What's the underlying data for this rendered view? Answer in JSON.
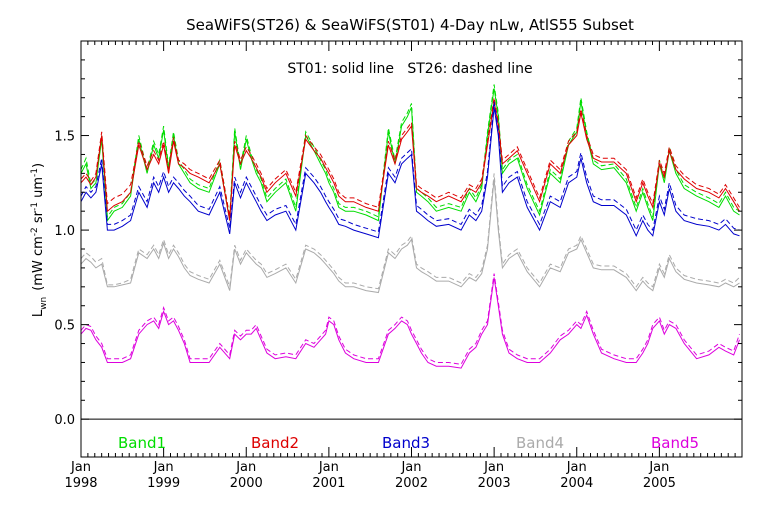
{
  "chart_data": {
    "type": "line",
    "title": "SeaWiFS(ST26) & SeaWiFS(ST01) 4-Day nLw, AtlS55 Subset",
    "annotation": "ST01: solid line   ST26: dashed line",
    "ylabel_main": "L",
    "ylabel_sub": "wn",
    "ylabel_units": "(mW cm",
    "ylabel_units_parts": [
      "(mW cm",
      "-2",
      " sr",
      "-1",
      " um",
      "-1",
      ")"
    ],
    "xlim": [
      1998.0,
      2006.0
    ],
    "ylim": [
      -0.2,
      2.0
    ],
    "yticks": [
      0.0,
      0.5,
      1.0,
      1.5
    ],
    "ytick_labels": [
      "0.0",
      "0.5",
      "1.0",
      "1.5"
    ],
    "xticks": [
      {
        "x": 1998.0,
        "month": "Jan",
        "year": "1998"
      },
      {
        "x": 1999.0,
        "month": "Jan",
        "year": "1999"
      },
      {
        "x": 2000.0,
        "month": "Jan",
        "year": "2000"
      },
      {
        "x": 2001.0,
        "month": "Jan",
        "year": "2001"
      },
      {
        "x": 2002.0,
        "month": "Jan",
        "year": "2002"
      },
      {
        "x": 2003.0,
        "month": "Jan",
        "year": "2003"
      },
      {
        "x": 2004.0,
        "month": "Jan",
        "year": "2004"
      },
      {
        "x": 2005.0,
        "month": "Jan",
        "year": "2005"
      }
    ],
    "zero_line": 0.0,
    "x": [
      1998.0,
      1998.06,
      1998.12,
      1998.18,
      1998.25,
      1998.32,
      1998.4,
      1998.5,
      1998.6,
      1998.7,
      1998.8,
      1998.88,
      1998.94,
      1999.0,
      1999.06,
      1999.12,
      1999.18,
      1999.25,
      1999.32,
      1999.42,
      1999.55,
      1999.68,
      1999.8,
      1999.86,
      1999.93,
      2000.0,
      2000.06,
      2000.12,
      2000.18,
      2000.25,
      2000.35,
      2000.48,
      2000.6,
      2000.72,
      2000.82,
      2000.9,
      2000.96,
      2001.0,
      2001.06,
      2001.12,
      2001.2,
      2001.3,
      2001.45,
      2001.6,
      2001.72,
      2001.8,
      2001.88,
      2001.95,
      2002.0,
      2002.06,
      2002.12,
      2002.2,
      2002.3,
      2002.45,
      2002.6,
      2002.7,
      2002.78,
      2002.85,
      2002.92,
      2003.0,
      2003.05,
      2003.1,
      2003.18,
      2003.28,
      2003.4,
      2003.55,
      2003.68,
      2003.8,
      2003.9,
      2004.0,
      2004.05,
      2004.12,
      2004.2,
      2004.3,
      2004.45,
      2004.6,
      2004.72,
      2004.8,
      2004.86,
      2004.92,
      2005.0,
      2005.06,
      2005.12,
      2005.2,
      2005.3,
      2005.45,
      2005.6,
      2005.72,
      2005.8,
      2005.9,
      2005.97
    ],
    "series": [
      {
        "name": "Band1",
        "color": "#00dd00",
        "st01": [
          1.3,
          1.35,
          1.22,
          1.25,
          1.48,
          1.05,
          1.1,
          1.12,
          1.18,
          1.48,
          1.3,
          1.45,
          1.38,
          1.53,
          1.32,
          1.5,
          1.35,
          1.3,
          1.25,
          1.22,
          1.2,
          1.35,
          1.05,
          1.52,
          1.32,
          1.48,
          1.38,
          1.3,
          1.25,
          1.15,
          1.2,
          1.25,
          1.1,
          1.5,
          1.42,
          1.35,
          1.3,
          1.25,
          1.2,
          1.12,
          1.1,
          1.1,
          1.08,
          1.05,
          1.52,
          1.35,
          1.55,
          1.6,
          1.65,
          1.2,
          1.18,
          1.15,
          1.1,
          1.12,
          1.1,
          1.2,
          1.15,
          1.22,
          1.5,
          1.75,
          1.6,
          1.3,
          1.35,
          1.38,
          1.22,
          1.08,
          1.3,
          1.25,
          1.45,
          1.52,
          1.68,
          1.5,
          1.35,
          1.32,
          1.33,
          1.25,
          1.1,
          1.2,
          1.12,
          1.05,
          1.35,
          1.25,
          1.42,
          1.3,
          1.22,
          1.18,
          1.15,
          1.12,
          1.18,
          1.1,
          1.08
        ],
        "st26": [
          1.32,
          1.38,
          1.24,
          1.27,
          1.5,
          1.07,
          1.12,
          1.14,
          1.2,
          1.5,
          1.32,
          1.47,
          1.4,
          1.55,
          1.34,
          1.52,
          1.37,
          1.32,
          1.27,
          1.24,
          1.22,
          1.37,
          1.07,
          1.54,
          1.34,
          1.5,
          1.4,
          1.32,
          1.27,
          1.17,
          1.22,
          1.27,
          1.12,
          1.52,
          1.44,
          1.37,
          1.32,
          1.27,
          1.22,
          1.14,
          1.12,
          1.12,
          1.1,
          1.07,
          1.54,
          1.37,
          1.57,
          1.62,
          1.67,
          1.22,
          1.2,
          1.17,
          1.12,
          1.14,
          1.12,
          1.22,
          1.17,
          1.24,
          1.52,
          1.77,
          1.62,
          1.32,
          1.37,
          1.4,
          1.24,
          1.1,
          1.32,
          1.27,
          1.47,
          1.54,
          1.7,
          1.52,
          1.37,
          1.34,
          1.35,
          1.27,
          1.12,
          1.22,
          1.14,
          1.07,
          1.37,
          1.27,
          1.44,
          1.32,
          1.24,
          1.2,
          1.17,
          1.14,
          1.2,
          1.12,
          1.1
        ]
      },
      {
        "name": "Band2",
        "color": "#dd0000",
        "st01": [
          1.25,
          1.28,
          1.24,
          1.28,
          1.5,
          1.1,
          1.13,
          1.15,
          1.2,
          1.45,
          1.32,
          1.4,
          1.35,
          1.45,
          1.3,
          1.47,
          1.35,
          1.33,
          1.3,
          1.28,
          1.25,
          1.35,
          1.05,
          1.45,
          1.35,
          1.42,
          1.38,
          1.33,
          1.28,
          1.2,
          1.25,
          1.3,
          1.18,
          1.48,
          1.42,
          1.38,
          1.33,
          1.3,
          1.25,
          1.18,
          1.15,
          1.15,
          1.12,
          1.1,
          1.45,
          1.35,
          1.48,
          1.52,
          1.55,
          1.22,
          1.2,
          1.18,
          1.15,
          1.18,
          1.15,
          1.22,
          1.2,
          1.25,
          1.45,
          1.68,
          1.55,
          1.35,
          1.38,
          1.42,
          1.3,
          1.15,
          1.35,
          1.3,
          1.45,
          1.5,
          1.62,
          1.48,
          1.38,
          1.36,
          1.36,
          1.3,
          1.15,
          1.25,
          1.18,
          1.12,
          1.35,
          1.28,
          1.42,
          1.32,
          1.27,
          1.22,
          1.2,
          1.17,
          1.22,
          1.15,
          1.1
        ],
        "st26": [
          1.27,
          1.3,
          1.26,
          1.3,
          1.52,
          1.14,
          1.17,
          1.19,
          1.24,
          1.47,
          1.34,
          1.42,
          1.37,
          1.47,
          1.32,
          1.49,
          1.37,
          1.35,
          1.32,
          1.3,
          1.27,
          1.37,
          1.07,
          1.47,
          1.37,
          1.44,
          1.4,
          1.35,
          1.3,
          1.22,
          1.27,
          1.32,
          1.2,
          1.5,
          1.44,
          1.4,
          1.35,
          1.32,
          1.27,
          1.2,
          1.17,
          1.17,
          1.14,
          1.12,
          1.47,
          1.37,
          1.5,
          1.54,
          1.57,
          1.24,
          1.22,
          1.2,
          1.17,
          1.2,
          1.17,
          1.24,
          1.22,
          1.27,
          1.47,
          1.7,
          1.57,
          1.37,
          1.4,
          1.44,
          1.32,
          1.17,
          1.37,
          1.32,
          1.47,
          1.52,
          1.64,
          1.5,
          1.4,
          1.38,
          1.38,
          1.32,
          1.17,
          1.27,
          1.2,
          1.14,
          1.37,
          1.3,
          1.44,
          1.34,
          1.29,
          1.24,
          1.22,
          1.19,
          1.24,
          1.17,
          1.12
        ]
      },
      {
        "name": "Band3",
        "color": "#0000cc",
        "st01": [
          1.15,
          1.2,
          1.17,
          1.2,
          1.35,
          1.0,
          1.0,
          1.02,
          1.05,
          1.2,
          1.12,
          1.25,
          1.2,
          1.28,
          1.2,
          1.25,
          1.22,
          1.18,
          1.15,
          1.1,
          1.08,
          1.2,
          0.98,
          1.25,
          1.17,
          1.25,
          1.2,
          1.15,
          1.1,
          1.05,
          1.08,
          1.1,
          1.0,
          1.3,
          1.25,
          1.2,
          1.15,
          1.12,
          1.08,
          1.03,
          1.02,
          1.0,
          0.98,
          0.96,
          1.3,
          1.25,
          1.35,
          1.38,
          1.4,
          1.1,
          1.08,
          1.05,
          1.02,
          1.03,
          1.0,
          1.08,
          1.05,
          1.1,
          1.28,
          1.65,
          1.5,
          1.2,
          1.25,
          1.28,
          1.12,
          1.0,
          1.15,
          1.12,
          1.25,
          1.28,
          1.38,
          1.25,
          1.15,
          1.13,
          1.13,
          1.08,
          0.97,
          1.05,
          1.0,
          0.97,
          1.15,
          1.08,
          1.22,
          1.1,
          1.05,
          1.03,
          1.02,
          1.0,
          1.03,
          0.98,
          0.97
        ],
        "st26": [
          1.18,
          1.23,
          1.2,
          1.23,
          1.38,
          1.03,
          1.03,
          1.05,
          1.08,
          1.23,
          1.15,
          1.28,
          1.23,
          1.31,
          1.23,
          1.28,
          1.25,
          1.21,
          1.18,
          1.13,
          1.11,
          1.23,
          1.01,
          1.28,
          1.2,
          1.28,
          1.23,
          1.18,
          1.13,
          1.08,
          1.11,
          1.13,
          1.03,
          1.33,
          1.28,
          1.23,
          1.18,
          1.15,
          1.11,
          1.06,
          1.05,
          1.03,
          1.01,
          0.99,
          1.33,
          1.28,
          1.38,
          1.41,
          1.43,
          1.13,
          1.11,
          1.08,
          1.05,
          1.06,
          1.03,
          1.11,
          1.08,
          1.13,
          1.31,
          1.68,
          1.53,
          1.23,
          1.28,
          1.31,
          1.15,
          1.03,
          1.18,
          1.15,
          1.28,
          1.31,
          1.41,
          1.28,
          1.18,
          1.16,
          1.16,
          1.11,
          1.0,
          1.08,
          1.03,
          1.0,
          1.18,
          1.11,
          1.25,
          1.13,
          1.08,
          1.06,
          1.05,
          1.03,
          1.06,
          1.01,
          1.0
        ]
      },
      {
        "name": "Band4",
        "color": "#aaaaaa",
        "st01": [
          0.82,
          0.85,
          0.83,
          0.8,
          0.82,
          0.7,
          0.7,
          0.71,
          0.72,
          0.88,
          0.85,
          0.9,
          0.85,
          0.93,
          0.85,
          0.9,
          0.86,
          0.8,
          0.76,
          0.74,
          0.72,
          0.82,
          0.68,
          0.9,
          0.82,
          0.88,
          0.85,
          0.82,
          0.8,
          0.75,
          0.77,
          0.8,
          0.72,
          0.9,
          0.88,
          0.85,
          0.82,
          0.8,
          0.77,
          0.73,
          0.7,
          0.7,
          0.68,
          0.67,
          0.88,
          0.85,
          0.9,
          0.92,
          0.95,
          0.8,
          0.78,
          0.76,
          0.73,
          0.73,
          0.7,
          0.75,
          0.73,
          0.77,
          0.9,
          1.27,
          1.0,
          0.8,
          0.85,
          0.88,
          0.78,
          0.7,
          0.8,
          0.78,
          0.88,
          0.9,
          0.95,
          0.88,
          0.8,
          0.79,
          0.79,
          0.75,
          0.68,
          0.73,
          0.7,
          0.68,
          0.8,
          0.75,
          0.85,
          0.78,
          0.74,
          0.72,
          0.71,
          0.7,
          0.72,
          0.7,
          0.72
        ],
        "st26": [
          0.85,
          0.88,
          0.86,
          0.83,
          0.85,
          0.71,
          0.71,
          0.72,
          0.74,
          0.9,
          0.87,
          0.92,
          0.87,
          0.95,
          0.87,
          0.92,
          0.88,
          0.82,
          0.78,
          0.76,
          0.74,
          0.84,
          0.7,
          0.92,
          0.84,
          0.9,
          0.87,
          0.84,
          0.82,
          0.77,
          0.79,
          0.82,
          0.74,
          0.92,
          0.9,
          0.87,
          0.84,
          0.82,
          0.79,
          0.75,
          0.72,
          0.72,
          0.7,
          0.69,
          0.9,
          0.87,
          0.92,
          0.94,
          0.97,
          0.82,
          0.8,
          0.78,
          0.75,
          0.75,
          0.72,
          0.77,
          0.75,
          0.79,
          0.92,
          1.3,
          1.03,
          0.82,
          0.87,
          0.9,
          0.8,
          0.72,
          0.82,
          0.8,
          0.9,
          0.92,
          0.97,
          0.9,
          0.82,
          0.81,
          0.81,
          0.77,
          0.7,
          0.75,
          0.72,
          0.7,
          0.82,
          0.77,
          0.87,
          0.8,
          0.76,
          0.74,
          0.73,
          0.72,
          0.74,
          0.72,
          0.75
        ]
      },
      {
        "name": "Band5",
        "color": "#dd00dd",
        "st01": [
          0.45,
          0.48,
          0.47,
          0.42,
          0.38,
          0.3,
          0.3,
          0.3,
          0.32,
          0.45,
          0.5,
          0.52,
          0.48,
          0.57,
          0.5,
          0.52,
          0.47,
          0.4,
          0.3,
          0.3,
          0.3,
          0.38,
          0.32,
          0.45,
          0.42,
          0.45,
          0.45,
          0.48,
          0.42,
          0.35,
          0.32,
          0.33,
          0.32,
          0.4,
          0.38,
          0.42,
          0.45,
          0.52,
          0.5,
          0.42,
          0.35,
          0.32,
          0.3,
          0.3,
          0.45,
          0.48,
          0.52,
          0.5,
          0.45,
          0.4,
          0.35,
          0.3,
          0.28,
          0.28,
          0.27,
          0.35,
          0.38,
          0.45,
          0.5,
          0.75,
          0.6,
          0.45,
          0.35,
          0.32,
          0.3,
          0.3,
          0.35,
          0.42,
          0.45,
          0.5,
          0.48,
          0.55,
          0.45,
          0.35,
          0.32,
          0.3,
          0.3,
          0.35,
          0.4,
          0.48,
          0.52,
          0.45,
          0.5,
          0.48,
          0.4,
          0.32,
          0.34,
          0.38,
          0.36,
          0.34,
          0.42
        ],
        "st26": [
          0.47,
          0.5,
          0.49,
          0.44,
          0.4,
          0.32,
          0.32,
          0.32,
          0.34,
          0.47,
          0.52,
          0.54,
          0.5,
          0.59,
          0.52,
          0.54,
          0.49,
          0.42,
          0.32,
          0.32,
          0.32,
          0.4,
          0.34,
          0.47,
          0.44,
          0.47,
          0.47,
          0.5,
          0.44,
          0.37,
          0.34,
          0.35,
          0.34,
          0.42,
          0.4,
          0.44,
          0.47,
          0.54,
          0.52,
          0.44,
          0.37,
          0.34,
          0.32,
          0.32,
          0.47,
          0.5,
          0.54,
          0.52,
          0.47,
          0.42,
          0.37,
          0.32,
          0.3,
          0.3,
          0.29,
          0.37,
          0.4,
          0.47,
          0.52,
          0.77,
          0.62,
          0.47,
          0.37,
          0.34,
          0.32,
          0.32,
          0.37,
          0.44,
          0.47,
          0.52,
          0.5,
          0.57,
          0.47,
          0.37,
          0.34,
          0.32,
          0.32,
          0.37,
          0.42,
          0.5,
          0.54,
          0.47,
          0.52,
          0.5,
          0.42,
          0.34,
          0.36,
          0.4,
          0.38,
          0.36,
          0.45
        ]
      }
    ],
    "legend": [
      {
        "label": "Band1",
        "color": "#00dd00"
      },
      {
        "label": "Band2",
        "color": "#dd0000"
      },
      {
        "label": "Band3",
        "color": "#0000cc"
      },
      {
        "label": "Band4",
        "color": "#aaaaaa"
      },
      {
        "label": "Band5",
        "color": "#dd00dd"
      }
    ]
  }
}
